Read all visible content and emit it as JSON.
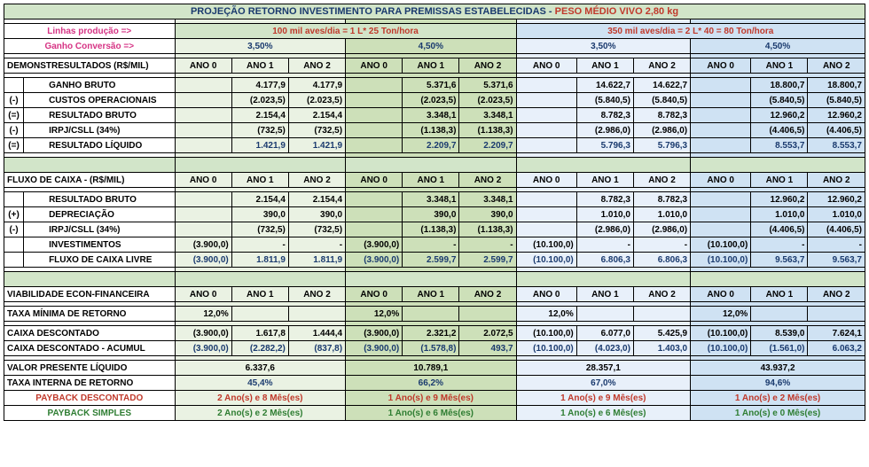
{
  "title_a": "PROJEÇÃO RETORNO INVESTIMENTO PARA PREMISSAS ESTABELECIDAS - ",
  "title_b": "PESO MÉDIO VIVO 2,80 kg",
  "lbl_linhas": "Linhas produção =>",
  "lbl_ganho": "Ganho Conversão =>",
  "hdr_100": "100 mil aves/dia = 1 L* 25 Ton/hora",
  "hdr_350": "350 mil aves/dia = 2 L* 40  = 80 Ton/hora",
  "pct_35": "3,50%",
  "pct_45": "4,50%",
  "sec_demo": "DEMONSTRESULTADOS (R$/MIL)",
  "ano0": "ANO 0",
  "ano1": "ANO 1",
  "ano2": "ANO 2",
  "rows_demo": [
    {
      "sym": "",
      "lab": "GANHO BRUTO",
      "g": [
        "",
        "4.177,9",
        "4.177,9"
      ],
      "gg": [
        "",
        "5.371,6",
        "5.371,6"
      ],
      "b": [
        "",
        "14.622,7",
        "14.622,7"
      ],
      "bb": [
        "",
        "18.800,7",
        "18.800,7"
      ]
    },
    {
      "sym": "(-)",
      "lab": "CUSTOS OPERACIONAIS",
      "g": [
        "",
        "(2.023,5)",
        "(2.023,5)"
      ],
      "gg": [
        "",
        "(2.023,5)",
        "(2.023,5)"
      ],
      "b": [
        "",
        "(5.840,5)",
        "(5.840,5)"
      ],
      "bb": [
        "",
        "(5.840,5)",
        "(5.840,5)"
      ]
    },
    {
      "sym": "(=)",
      "lab": "RESULTADO BRUTO",
      "g": [
        "",
        "2.154,4",
        "2.154,4"
      ],
      "gg": [
        "",
        "3.348,1",
        "3.348,1"
      ],
      "b": [
        "",
        "8.782,3",
        "8.782,3"
      ],
      "bb": [
        "",
        "12.960,2",
        "12.960,2"
      ]
    },
    {
      "sym": "(-)",
      "lab": "IRPJ/CSLL (34%)",
      "g": [
        "",
        "(732,5)",
        "(732,5)"
      ],
      "gg": [
        "",
        "(1.138,3)",
        "(1.138,3)"
      ],
      "b": [
        "",
        "(2.986,0)",
        "(2.986,0)"
      ],
      "bb": [
        "",
        "(4.406,5)",
        "(4.406,5)"
      ]
    },
    {
      "sym": "(=)",
      "lab": "RESULTADO LÍQUIDO",
      "blue": true,
      "g": [
        "",
        "1.421,9",
        "1.421,9"
      ],
      "gg": [
        "",
        "2.209,7",
        "2.209,7"
      ],
      "b": [
        "",
        "5.796,3",
        "5.796,3"
      ],
      "bb": [
        "",
        "8.553,7",
        "8.553,7"
      ]
    }
  ],
  "sec_fluxo": "FLUXO DE CAIXA - (R$/MIL)",
  "rows_fluxo": [
    {
      "sym": "",
      "lab": "RESULTADO BRUTO",
      "g": [
        "",
        "2.154,4",
        "2.154,4"
      ],
      "gg": [
        "",
        "3.348,1",
        "3.348,1"
      ],
      "b": [
        "",
        "8.782,3",
        "8.782,3"
      ],
      "bb": [
        "",
        "12.960,2",
        "12.960,2"
      ]
    },
    {
      "sym": "(+)",
      "lab": "DEPRECIAÇÃO",
      "g": [
        "",
        "390,0",
        "390,0"
      ],
      "gg": [
        "",
        "390,0",
        "390,0"
      ],
      "b": [
        "",
        "1.010,0",
        "1.010,0"
      ],
      "bb": [
        "",
        "1.010,0",
        "1.010,0"
      ]
    },
    {
      "sym": "(-)",
      "lab": "IRPJ/CSLL (34%)",
      "g": [
        "",
        "(732,5)",
        "(732,5)"
      ],
      "gg": [
        "",
        "(1.138,3)",
        "(1.138,3)"
      ],
      "b": [
        "",
        "(2.986,0)",
        "(2.986,0)"
      ],
      "bb": [
        "",
        "(4.406,5)",
        "(4.406,5)"
      ]
    },
    {
      "sym": "",
      "lab": "INVESTIMENTOS",
      "g": [
        "(3.900,0)",
        "-",
        "-"
      ],
      "gg": [
        "(3.900,0)",
        "-",
        "-"
      ],
      "b": [
        "(10.100,0)",
        "-",
        "-"
      ],
      "bb": [
        "(10.100,0)",
        "-",
        "-"
      ]
    },
    {
      "sym": "",
      "lab": "FLUXO DE CAIXA LIVRE",
      "blue": true,
      "g": [
        "(3.900,0)",
        "1.811,9",
        "1.811,9"
      ],
      "gg": [
        "(3.900,0)",
        "2.599,7",
        "2.599,7"
      ],
      "b": [
        "(10.100,0)",
        "6.806,3",
        "6.806,3"
      ],
      "bb": [
        "(10.100,0)",
        "9.563,7",
        "9.563,7"
      ]
    }
  ],
  "sec_viab": "VIABILIDADE ECON-FINANCEIRA",
  "taxa_min_lbl": "TAXA MÍNIMA DE RETORNO",
  "taxa_min": "12,0%",
  "cx_desc_lbl": "CAIXA DESCONTADO",
  "cx_desc": {
    "g": [
      "(3.900,0)",
      "1.617,8",
      "1.444,4"
    ],
    "gg": [
      "(3.900,0)",
      "2.321,2",
      "2.072,5"
    ],
    "b": [
      "(10.100,0)",
      "6.077,0",
      "5.425,9"
    ],
    "bb": [
      "(10.100,0)",
      "8.539,0",
      "7.624,1"
    ]
  },
  "cx_acum_lbl": "CAIXA DESCONTADO - ACUMUL",
  "cx_acum": {
    "g": [
      "(3.900,0)",
      "(2.282,2)",
      "(837,8)"
    ],
    "gg": [
      "(3.900,0)",
      "(1.578,8)",
      "493,7"
    ],
    "b": [
      "(10.100,0)",
      "(4.023,0)",
      "1.403,0"
    ],
    "bb": [
      "(10.100,0)",
      "(1.561,0)",
      "6.063,2"
    ]
  },
  "vpl_lbl": "VALOR PRESENTE LÍQUIDO",
  "vpl": {
    "g": "6.337,6",
    "gg": "10.789,1",
    "b": "28.357,1",
    "bb": "43.937,2"
  },
  "tir_lbl": "TAXA INTERNA DE RETORNO",
  "tir": {
    "g": "45,4%",
    "gg": "66,2%",
    "b": "67,0%",
    "bb": "94,6%"
  },
  "pbd_lbl": "PAYBACK DESCONTADO",
  "pbd": {
    "g": "2 Ano(s) e  8  Mês(es)",
    "gg": "1 Ano(s) e  9  Mês(es)",
    "b": "1 Ano(s) e  9  Mês(es)",
    "bb": "1 Ano(s) e  2  Mês(es)"
  },
  "pbs_lbl": "PAYBACK SIMPLES",
  "pbs": {
    "g": "2 Ano(s) e  2  Mês(es)",
    "gg": "1 Ano(s) e  6  Mês(es)",
    "b": "1 Ano(s) e  6  Mês(es)",
    "bb": "1 Ano(s) e  0  Mês(es)"
  }
}
